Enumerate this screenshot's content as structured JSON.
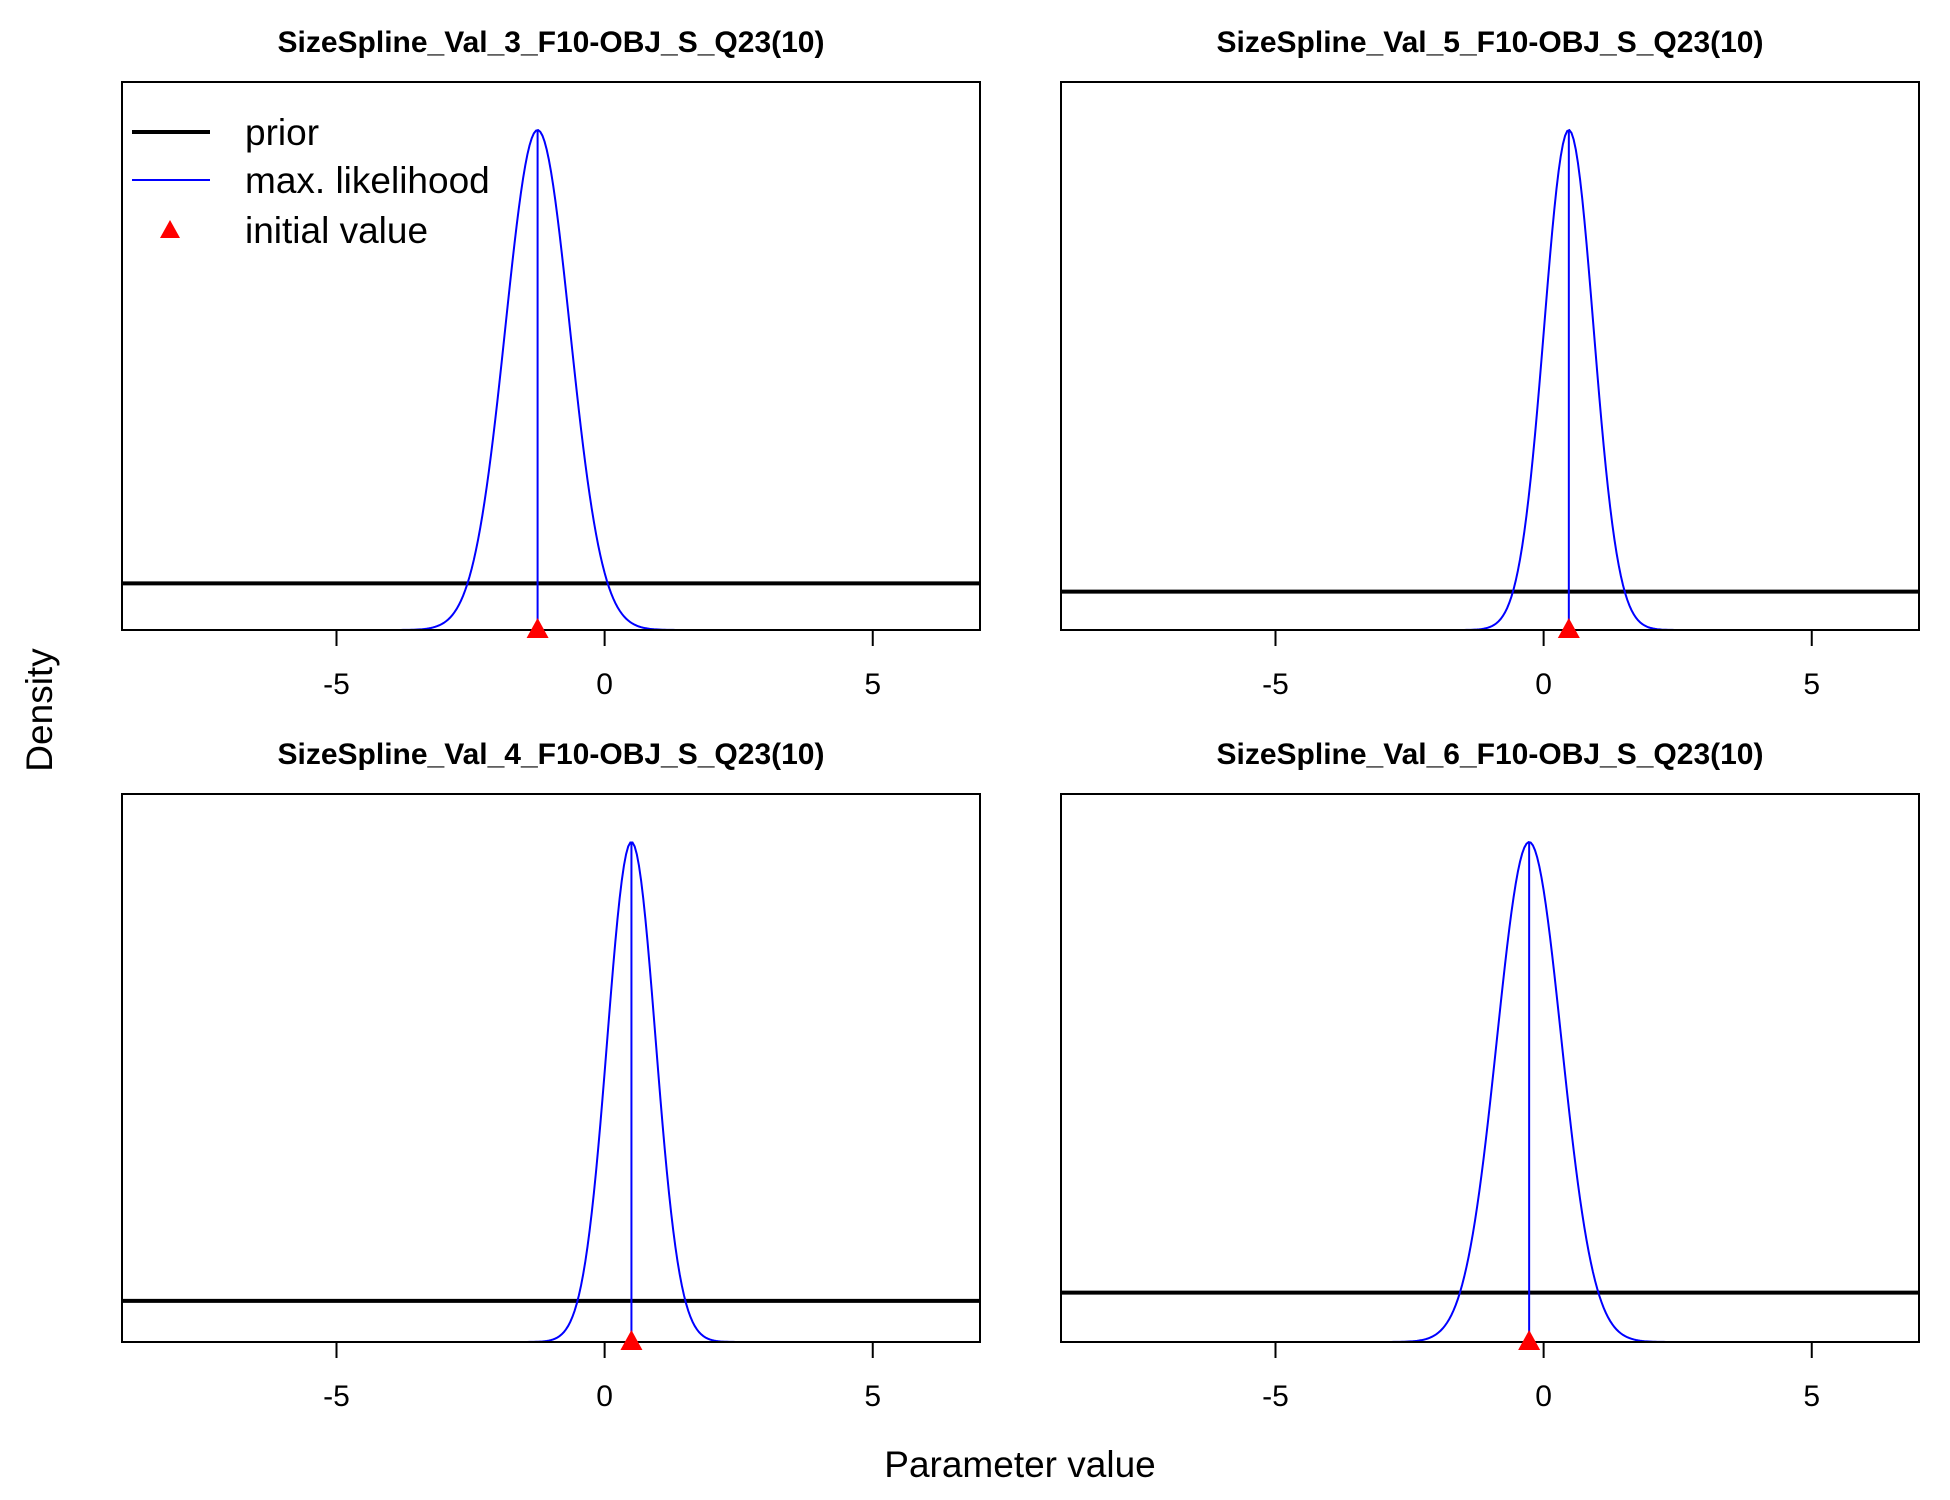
{
  "chart_data": {
    "type": "line",
    "xlabel": "Parameter value",
    "ylabel": "Density",
    "xlim": [
      -9,
      7
    ],
    "xticks": [
      -5,
      0,
      5
    ],
    "legend": {
      "placement": "top-left",
      "entries": [
        {
          "label": "prior",
          "color": "#000000",
          "kind": "thick-line"
        },
        {
          "label": "max. likelihood",
          "color": "#0000ff",
          "kind": "line"
        },
        {
          "label": "initial value",
          "color": "#ff0000",
          "kind": "triangle"
        }
      ]
    },
    "panels": [
      {
        "title": "SizeSpline_Val_3_F10-OBJ_S_Q23(10)",
        "mle": -1.25,
        "sd": 0.6,
        "initial": -1.25,
        "prior_level": 0.085
      },
      {
        "title": "SizeSpline_Val_5_F10-OBJ_S_Q23(10)",
        "mle": 0.47,
        "sd": 0.46,
        "initial": 0.47,
        "prior_level": 0.07
      },
      {
        "title": "SizeSpline_Val_4_F10-OBJ_S_Q23(10)",
        "mle": 0.5,
        "sd": 0.45,
        "initial": 0.5,
        "prior_level": 0.075
      },
      {
        "title": "SizeSpline_Val_6_F10-OBJ_S_Q23(10)",
        "mle": -0.27,
        "sd": 0.6,
        "initial": -0.27,
        "prior_level": 0.09
      }
    ],
    "colors": {
      "prior": "#000000",
      "mle": "#0000ff",
      "initial": "#ff0000"
    }
  }
}
